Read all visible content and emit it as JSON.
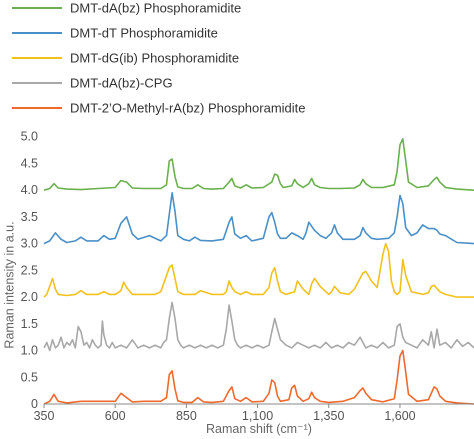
{
  "chart_data": {
    "type": "line",
    "title": "",
    "xlabel": "Raman shift (cm⁻¹)",
    "ylabel": "Raman intensity in a.u.",
    "xlim": [
      350,
      1860
    ],
    "ylim": [
      0,
      5.2
    ],
    "xticks": [
      {
        "value": 350,
        "label": "350"
      },
      {
        "value": 600,
        "label": "600"
      },
      {
        "value": 850,
        "label": "850"
      },
      {
        "value": 1100,
        "label": "1,100"
      },
      {
        "value": 1350,
        "label": "1,350"
      },
      {
        "value": 1600,
        "label": "1,600"
      }
    ],
    "yticks": [
      {
        "value": 0,
        "label": "0"
      },
      {
        "value": 0.5,
        "label": "0.5"
      },
      {
        "value": 1.0,
        "label": "1.0"
      },
      {
        "value": 1.5,
        "label": "1.5"
      },
      {
        "value": 2.0,
        "label": "2.0"
      },
      {
        "value": 2.5,
        "label": "2.5"
      },
      {
        "value": 3.0,
        "label": "3.0"
      },
      {
        "value": 3.5,
        "label": "3.5"
      },
      {
        "value": 4.0,
        "label": "4.0"
      },
      {
        "value": 4.5,
        "label": "4.5"
      },
      {
        "value": 5.0,
        "label": "5.0"
      }
    ],
    "grid": false,
    "legend_position": "top-left",
    "series": [
      {
        "name": "DMT-dA(bz) Phosphoramidite",
        "color": "#6ab04c",
        "x": [
          350,
          370,
          385,
          400,
          430,
          480,
          540,
          600,
          620,
          640,
          660,
          700,
          760,
          780,
          790,
          800,
          810,
          820,
          840,
          870,
          890,
          910,
          940,
          980,
          1000,
          1010,
          1020,
          1040,
          1060,
          1080,
          1120,
          1150,
          1160,
          1170,
          1180,
          1190,
          1220,
          1230,
          1240,
          1260,
          1280,
          1290,
          1300,
          1320,
          1350,
          1390,
          1440,
          1460,
          1470,
          1480,
          1500,
          1540,
          1580,
          1590,
          1600,
          1610,
          1620,
          1630,
          1660,
          1700,
          1720,
          1730,
          1740,
          1760,
          1800,
          1860
        ],
        "y": [
          4.0,
          4.03,
          4.12,
          4.04,
          4.02,
          4.01,
          4.03,
          4.05,
          4.18,
          4.15,
          4.04,
          4.03,
          4.03,
          4.1,
          4.55,
          4.58,
          4.25,
          4.06,
          4.03,
          4.03,
          4.1,
          4.03,
          4.02,
          4.03,
          4.15,
          4.22,
          4.08,
          4.04,
          4.1,
          4.04,
          4.05,
          4.15,
          4.3,
          4.28,
          4.12,
          4.05,
          4.08,
          4.2,
          4.12,
          4.05,
          4.12,
          4.22,
          4.1,
          4.05,
          4.03,
          4.03,
          4.04,
          4.1,
          4.2,
          4.12,
          4.05,
          4.05,
          4.1,
          4.35,
          4.85,
          4.96,
          4.55,
          4.15,
          4.05,
          4.08,
          4.2,
          4.24,
          4.15,
          4.05,
          4.02,
          4.0
        ]
      },
      {
        "name": "DMT-dT Phosphoramidite",
        "color": "#4a90c8",
        "x": [
          350,
          370,
          390,
          410,
          430,
          460,
          480,
          500,
          540,
          560,
          580,
          600,
          620,
          640,
          660,
          680,
          720,
          760,
          780,
          790,
          800,
          810,
          820,
          840,
          860,
          880,
          900,
          940,
          980,
          1000,
          1010,
          1020,
          1040,
          1060,
          1080,
          1120,
          1140,
          1150,
          1160,
          1170,
          1180,
          1200,
          1220,
          1240,
          1260,
          1270,
          1280,
          1300,
          1320,
          1340,
          1360,
          1370,
          1380,
          1400,
          1440,
          1460,
          1470,
          1480,
          1500,
          1520,
          1560,
          1580,
          1590,
          1600,
          1610,
          1620,
          1640,
          1660,
          1680,
          1700,
          1720,
          1730,
          1740,
          1760,
          1800,
          1860
        ],
        "y": [
          3.0,
          3.05,
          3.2,
          3.08,
          3.02,
          3.05,
          3.12,
          3.05,
          3.05,
          3.15,
          3.08,
          3.1,
          3.38,
          3.5,
          3.18,
          3.08,
          3.15,
          3.05,
          3.15,
          3.55,
          3.95,
          3.6,
          3.15,
          3.08,
          3.05,
          3.12,
          3.06,
          3.05,
          3.08,
          3.4,
          3.5,
          3.18,
          3.1,
          3.15,
          3.05,
          3.1,
          3.5,
          3.58,
          3.4,
          3.18,
          3.1,
          3.1,
          3.2,
          3.15,
          3.08,
          3.2,
          3.4,
          3.25,
          3.15,
          3.1,
          3.2,
          3.35,
          3.2,
          3.08,
          3.08,
          3.15,
          3.3,
          3.2,
          3.1,
          3.08,
          3.1,
          3.2,
          3.5,
          3.9,
          3.75,
          3.3,
          3.15,
          3.2,
          3.35,
          3.28,
          3.28,
          3.25,
          3.18,
          3.15,
          3.02,
          3.0
        ]
      },
      {
        "name": "DMT-dG(ib) Phosphoramidite",
        "color": "#f2c11c",
        "x": [
          350,
          360,
          370,
          380,
          390,
          400,
          430,
          460,
          480,
          500,
          540,
          560,
          580,
          600,
          620,
          630,
          640,
          660,
          700,
          740,
          760,
          780,
          790,
          800,
          810,
          820,
          840,
          860,
          880,
          900,
          940,
          980,
          990,
          1000,
          1010,
          1020,
          1040,
          1060,
          1080,
          1120,
          1140,
          1150,
          1160,
          1170,
          1180,
          1200,
          1230,
          1240,
          1260,
          1280,
          1290,
          1300,
          1320,
          1350,
          1360,
          1370,
          1390,
          1420,
          1440,
          1460,
          1470,
          1480,
          1500,
          1520,
          1540,
          1550,
          1560,
          1570,
          1580,
          1590,
          1600,
          1610,
          1620,
          1640,
          1680,
          1700,
          1710,
          1720,
          1740,
          1760,
          1800,
          1860
        ],
        "y": [
          2.0,
          2.05,
          2.2,
          2.35,
          2.15,
          2.05,
          2.03,
          2.05,
          2.12,
          2.05,
          2.05,
          2.1,
          2.05,
          2.05,
          2.12,
          2.28,
          2.18,
          2.05,
          2.05,
          2.05,
          2.1,
          2.4,
          2.55,
          2.6,
          2.35,
          2.1,
          2.05,
          2.05,
          2.05,
          2.12,
          2.05,
          2.05,
          2.1,
          2.3,
          2.18,
          2.1,
          2.05,
          2.1,
          2.05,
          2.05,
          2.18,
          2.45,
          2.55,
          2.3,
          2.1,
          2.05,
          2.1,
          2.3,
          2.15,
          2.05,
          2.25,
          2.35,
          2.2,
          2.05,
          2.1,
          2.2,
          2.08,
          2.05,
          2.15,
          2.35,
          2.45,
          2.48,
          2.3,
          2.18,
          2.8,
          3.0,
          2.85,
          2.3,
          2.1,
          2.05,
          2.1,
          2.7,
          2.4,
          2.1,
          2.05,
          2.08,
          2.2,
          2.22,
          2.1,
          2.05,
          2.0,
          2.0
        ]
      },
      {
        "name": "DMT-dA(bz)-CPG",
        "color": "#a8a8a8",
        "x": [
          350,
          360,
          370,
          380,
          390,
          400,
          410,
          420,
          430,
          440,
          450,
          460,
          470,
          480,
          490,
          500,
          510,
          520,
          530,
          540,
          550,
          555,
          560,
          570,
          580,
          590,
          600,
          620,
          640,
          660,
          680,
          700,
          720,
          740,
          760,
          770,
          780,
          790,
          800,
          810,
          820,
          830,
          840,
          860,
          880,
          900,
          920,
          940,
          960,
          980,
          990,
          1000,
          1010,
          1020,
          1030,
          1040,
          1060,
          1080,
          1100,
          1120,
          1140,
          1150,
          1160,
          1170,
          1180,
          1200,
          1220,
          1240,
          1260,
          1280,
          1300,
          1320,
          1340,
          1360,
          1380,
          1400,
          1420,
          1440,
          1460,
          1480,
          1500,
          1520,
          1540,
          1560,
          1580,
          1590,
          1600,
          1610,
          1620,
          1640,
          1660,
          1680,
          1700,
          1710,
          1720,
          1730,
          1740,
          1760,
          1780,
          1800,
          1820,
          1840,
          1860
        ],
        "y": [
          1.05,
          1.15,
          1.0,
          1.2,
          1.05,
          1.1,
          1.25,
          1.05,
          1.15,
          1.1,
          1.2,
          1.05,
          1.45,
          1.35,
          1.1,
          1.15,
          1.05,
          1.2,
          1.1,
          1.05,
          1.1,
          1.55,
          1.3,
          1.1,
          1.05,
          1.15,
          1.05,
          1.1,
          1.05,
          1.2,
          1.05,
          1.1,
          1.05,
          1.1,
          1.05,
          1.15,
          1.2,
          1.6,
          1.9,
          1.6,
          1.2,
          1.1,
          1.05,
          1.1,
          1.05,
          1.1,
          1.05,
          1.1,
          1.05,
          1.1,
          1.4,
          1.85,
          1.55,
          1.2,
          1.1,
          1.05,
          1.1,
          1.05,
          1.1,
          1.05,
          1.1,
          1.35,
          1.6,
          1.4,
          1.2,
          1.1,
          1.05,
          1.15,
          1.1,
          1.05,
          1.1,
          1.05,
          1.15,
          1.05,
          1.1,
          1.05,
          1.15,
          1.1,
          1.25,
          1.05,
          1.1,
          1.05,
          1.15,
          1.05,
          1.1,
          1.45,
          1.5,
          1.25,
          1.15,
          1.1,
          1.05,
          1.2,
          1.1,
          1.35,
          1.05,
          1.4,
          1.1,
          1.15,
          1.05,
          1.2,
          1.08,
          1.15,
          1.05
        ]
      },
      {
        "name": "DMT-2’O-Methyl-rA(bz) Phosphoramidite",
        "color": "#ee6a2c",
        "x": [
          350,
          370,
          385,
          400,
          430,
          480,
          540,
          600,
          620,
          640,
          660,
          700,
          760,
          780,
          790,
          800,
          810,
          820,
          840,
          870,
          890,
          910,
          940,
          980,
          1000,
          1010,
          1020,
          1040,
          1060,
          1080,
          1120,
          1140,
          1150,
          1160,
          1170,
          1180,
          1210,
          1220,
          1230,
          1240,
          1260,
          1280,
          1290,
          1300,
          1320,
          1350,
          1400,
          1440,
          1460,
          1470,
          1480,
          1500,
          1540,
          1580,
          1590,
          1600,
          1610,
          1620,
          1630,
          1660,
          1700,
          1710,
          1720,
          1730,
          1740,
          1760,
          1800,
          1860
        ],
        "y": [
          0.0,
          0.05,
          0.18,
          0.05,
          0.02,
          0.05,
          0.05,
          0.05,
          0.2,
          0.12,
          0.04,
          0.05,
          0.05,
          0.12,
          0.55,
          0.62,
          0.28,
          0.06,
          0.03,
          0.03,
          0.12,
          0.04,
          0.03,
          0.05,
          0.25,
          0.32,
          0.1,
          0.05,
          0.12,
          0.04,
          0.05,
          0.2,
          0.45,
          0.4,
          0.15,
          0.05,
          0.08,
          0.3,
          0.35,
          0.15,
          0.05,
          0.1,
          0.22,
          0.12,
          0.05,
          0.03,
          0.05,
          0.12,
          0.25,
          0.3,
          0.2,
          0.08,
          0.04,
          0.1,
          0.45,
          0.9,
          1.0,
          0.6,
          0.18,
          0.05,
          0.08,
          0.2,
          0.32,
          0.28,
          0.15,
          0.05,
          0.02,
          0.0
        ]
      }
    ]
  }
}
